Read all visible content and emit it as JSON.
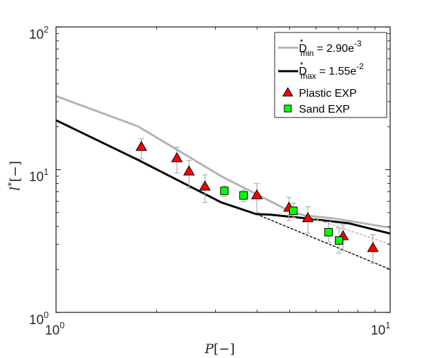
{
  "chart_data": {
    "type": "line",
    "xscale": "log",
    "yscale": "log",
    "xlim": [
      1,
      10
    ],
    "ylim": [
      1,
      100
    ],
    "xlabel": "P[−]",
    "xlabel_parts": {
      "symbol": "P",
      "unit": "[−]"
    },
    "ylabel": "l*[−]",
    "ylabel_parts": {
      "symbol": "l",
      "sup": "*",
      "unit": "[−]"
    },
    "grid": false,
    "x_ticks": [
      {
        "value": 1,
        "base": "10",
        "exp": "0"
      },
      {
        "value": 10,
        "base": "10",
        "exp": "1"
      }
    ],
    "y_ticks": [
      {
        "value": 1,
        "base": "10",
        "exp": "0"
      },
      {
        "value": 10,
        "base": "10",
        "exp": "1"
      },
      {
        "value": 100,
        "base": "10",
        "exp": "2"
      }
    ],
    "legend_position": "top-right",
    "series": [
      {
        "name": "D*min = 2.90e-3",
        "legend": {
          "base": "D",
          "sup": "*",
          "sub": "min",
          "eq": " = 2.90e",
          "exp": "-3"
        },
        "kind": "line",
        "color": "#b3b3b3",
        "x": [
          1,
          1.76,
          3.12,
          4.98,
          5.54,
          6.71,
          10
        ],
        "y": [
          32.8,
          20.1,
          9.0,
          5.15,
          4.78,
          4.57,
          3.92
        ]
      },
      {
        "name": "D*max = 1.55e-2",
        "legend": {
          "base": "D",
          "sup": "*",
          "sub": "max",
          "eq": " = 1.55e",
          "exp": "-2"
        },
        "kind": "line",
        "color": "#000000",
        "x": [
          1,
          1.76,
          3.12,
          3.97,
          4.38,
          5.31,
          7.52,
          10
        ],
        "y": [
          22.2,
          11.7,
          5.9,
          4.89,
          4.84,
          4.62,
          4.21,
          3.57
        ]
      },
      {
        "name": "D*min extrapolation",
        "kind": "dashed",
        "color": "#b3b3b3",
        "x": [
          5.54,
          10
        ],
        "y": [
          4.78,
          3.0
        ]
      },
      {
        "name": "D*max extrapolation",
        "kind": "dashed",
        "color": "#000000",
        "x": [
          3.97,
          10
        ],
        "y": [
          4.89,
          2.0
        ]
      },
      {
        "name": "Plastic EXP",
        "legend": {
          "label": "Plastic EXP"
        },
        "kind": "triangle",
        "color": "#ff0000",
        "x": [
          1.8,
          2.3,
          2.5,
          2.79,
          3.99,
          4.98,
          5.67,
          7.23,
          8.88
        ],
        "y": [
          14.4,
          12.0,
          9.7,
          7.6,
          6.6,
          5.4,
          4.56,
          3.41,
          2.82
        ],
        "err_low": [
          11.9,
          9.5,
          7.4,
          5.9,
          5.0,
          4.4,
          3.6,
          2.7,
          2.2
        ],
        "err_high": [
          16.5,
          14.4,
          11.6,
          9.2,
          8.0,
          6.4,
          5.5,
          4.1,
          3.5
        ]
      },
      {
        "name": "Sand EXP",
        "legend": {
          "label": "Sand EXP"
        },
        "kind": "square",
        "color": "#00ff00",
        "x": [
          3.19,
          3.64,
          5.13,
          6.54,
          7.03
        ],
        "y": [
          7.1,
          6.6,
          5.15,
          3.65,
          3.19
        ],
        "err_low": [
          6.5,
          6.0,
          4.6,
          3.1,
          2.6
        ],
        "err_high": [
          7.7,
          7.2,
          5.8,
          4.3,
          3.9
        ]
      }
    ]
  }
}
